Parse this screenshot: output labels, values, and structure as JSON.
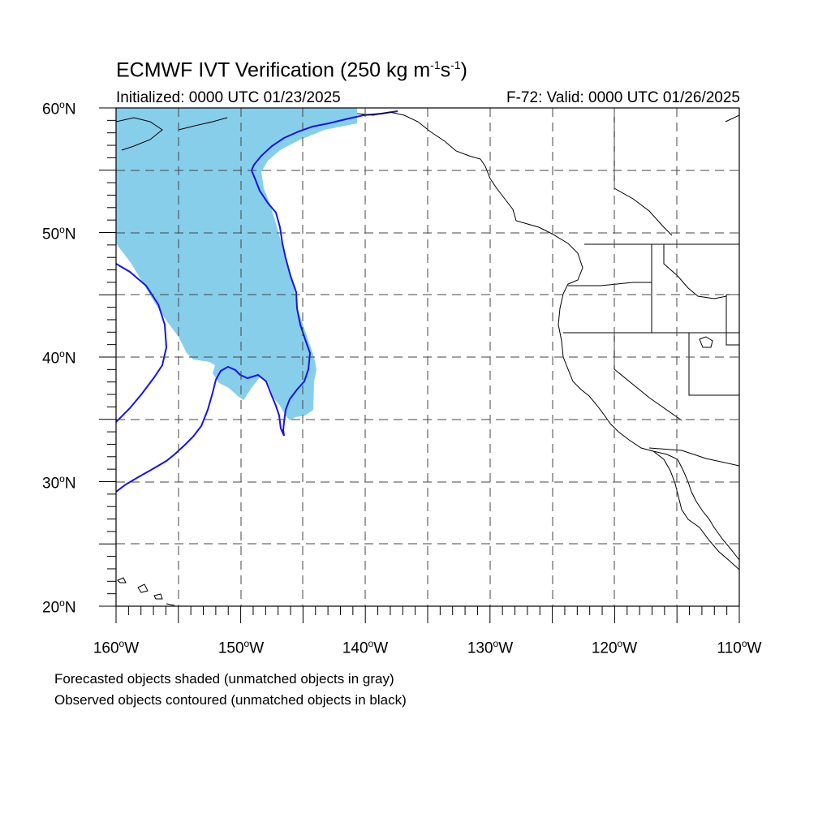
{
  "title": {
    "main": "ECMWF IVT Verification (250 kg m",
    "exp1": "-1",
    "mid": "s",
    "exp2": "-1",
    "end": ")"
  },
  "initialized": "Initialized: 0000 UTC 01/23/2025",
  "valid": "F-72: Valid: 0000 UTC 01/26/2025",
  "degree_symbol": "o",
  "lat_labels": [
    {
      "num": "60",
      "hemi": "N"
    },
    {
      "num": "50",
      "hemi": "N"
    },
    {
      "num": "40",
      "hemi": "N"
    },
    {
      "num": "30",
      "hemi": "N"
    },
    {
      "num": "20",
      "hemi": "N"
    }
  ],
  "lon_labels": [
    {
      "num": "160",
      "hemi": "W"
    },
    {
      "num": "150",
      "hemi": "W"
    },
    {
      "num": "140",
      "hemi": "W"
    },
    {
      "num": "130",
      "hemi": "W"
    },
    {
      "num": "120",
      "hemi": "W"
    },
    {
      "num": "110",
      "hemi": "W"
    }
  ],
  "captions": {
    "forecast": "Forecasted objects shaded (unmatched objects in gray)",
    "observed": "Observed objects contoured (unmatched objects in black)"
  },
  "map": {
    "lat_range": [
      20,
      60
    ],
    "lon_range": [
      -160,
      -110
    ],
    "grid_step_deg": 5,
    "grid_style": "dashed",
    "forecast_fill_color": "#87ceeb",
    "observed_contour_color": "#1515e6"
  }
}
